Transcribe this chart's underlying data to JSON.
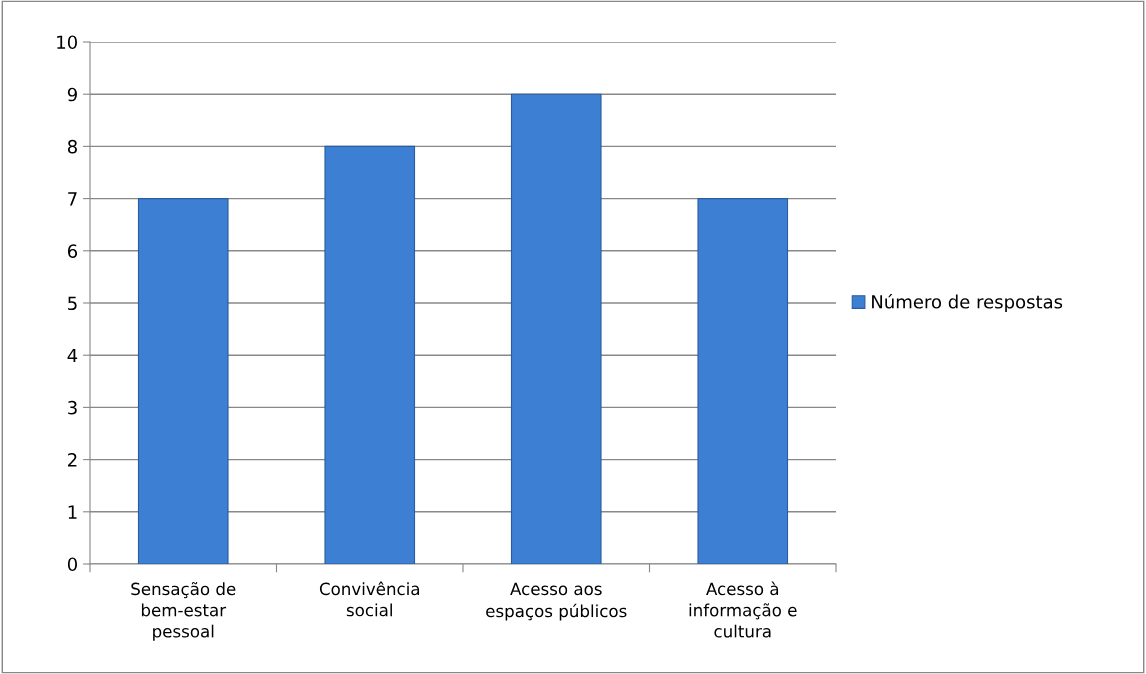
{
  "chart_data": {
    "type": "bar",
    "categories": [
      "Sensação de bem-estar pessoal",
      "Convivência social",
      "Acesso aos espaços públicos",
      "Acesso à informação e cultura"
    ],
    "series": [
      {
        "name": "Número de respostas",
        "color": "#3d7fd3",
        "values": [
          7,
          8,
          9,
          7
        ]
      }
    ],
    "ylim": [
      0,
      10
    ],
    "yticks": [
      0,
      1,
      2,
      3,
      4,
      5,
      6,
      7,
      8,
      9,
      10
    ],
    "grid": "y",
    "legend": "right"
  }
}
